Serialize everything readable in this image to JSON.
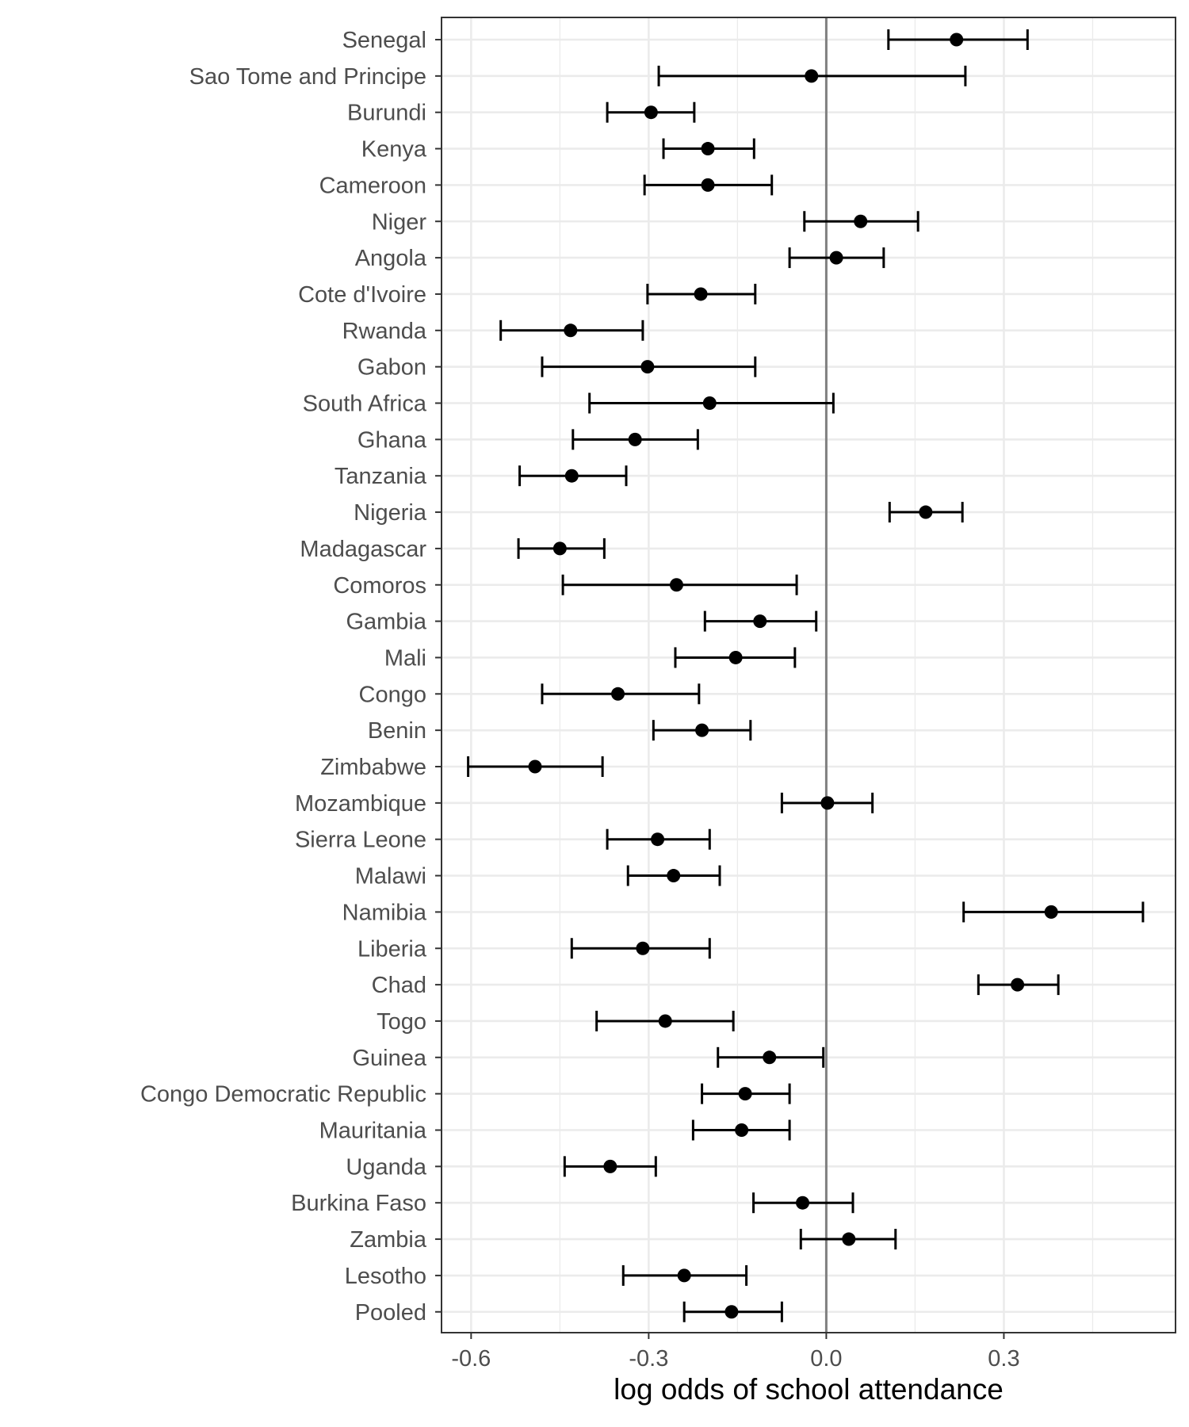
{
  "chart_data": {
    "type": "forest",
    "xlabel": "log odds of school attendance",
    "ylabel": "",
    "xlim": [
      -0.65,
      0.59
    ],
    "x_ticks": [
      -0.6,
      -0.3,
      0.0,
      0.3
    ],
    "x_tick_labels": [
      "-0.6",
      "-0.3",
      "0.0",
      "0.3"
    ],
    "reference_line": 0.0,
    "grid": true,
    "points": [
      {
        "label": "Senegal",
        "estimate": 0.22,
        "lower": 0.105,
        "upper": 0.34
      },
      {
        "label": "Sao Tome and Principe",
        "estimate": -0.025,
        "lower": -0.283,
        "upper": 0.235
      },
      {
        "label": "Burundi",
        "estimate": -0.296,
        "lower": -0.37,
        "upper": -0.223
      },
      {
        "label": "Kenya",
        "estimate": -0.2,
        "lower": -0.275,
        "upper": -0.122
      },
      {
        "label": "Cameroon",
        "estimate": -0.2,
        "lower": -0.307,
        "upper": -0.092
      },
      {
        "label": "Niger",
        "estimate": 0.058,
        "lower": -0.037,
        "upper": 0.155
      },
      {
        "label": "Angola",
        "estimate": 0.017,
        "lower": -0.062,
        "upper": 0.097
      },
      {
        "label": "Cote d'Ivoire",
        "estimate": -0.212,
        "lower": -0.302,
        "upper": -0.12
      },
      {
        "label": "Rwanda",
        "estimate": -0.432,
        "lower": -0.55,
        "upper": -0.31
      },
      {
        "label": "Gabon",
        "estimate": -0.302,
        "lower": -0.48,
        "upper": -0.12
      },
      {
        "label": "South Africa",
        "estimate": -0.197,
        "lower": -0.4,
        "upper": 0.012
      },
      {
        "label": "Ghana",
        "estimate": -0.323,
        "lower": -0.428,
        "upper": -0.217
      },
      {
        "label": "Tanzania",
        "estimate": -0.43,
        "lower": -0.518,
        "upper": -0.338
      },
      {
        "label": "Nigeria",
        "estimate": 0.168,
        "lower": 0.107,
        "upper": 0.23
      },
      {
        "label": "Madagascar",
        "estimate": -0.45,
        "lower": -0.52,
        "upper": -0.375
      },
      {
        "label": "Comoros",
        "estimate": -0.253,
        "lower": -0.445,
        "upper": -0.05
      },
      {
        "label": "Gambia",
        "estimate": -0.112,
        "lower": -0.205,
        "upper": -0.017
      },
      {
        "label": "Mali",
        "estimate": -0.153,
        "lower": -0.255,
        "upper": -0.053
      },
      {
        "label": "Congo",
        "estimate": -0.352,
        "lower": -0.48,
        "upper": -0.215
      },
      {
        "label": "Benin",
        "estimate": -0.21,
        "lower": -0.292,
        "upper": -0.128
      },
      {
        "label": "Zimbabwe",
        "estimate": -0.492,
        "lower": -0.605,
        "upper": -0.378
      },
      {
        "label": "Mozambique",
        "estimate": 0.002,
        "lower": -0.075,
        "upper": 0.078
      },
      {
        "label": "Sierra Leone",
        "estimate": -0.285,
        "lower": -0.37,
        "upper": -0.197
      },
      {
        "label": "Malawi",
        "estimate": -0.258,
        "lower": -0.335,
        "upper": -0.18
      },
      {
        "label": "Namibia",
        "estimate": 0.38,
        "lower": 0.232,
        "upper": 0.535
      },
      {
        "label": "Liberia",
        "estimate": -0.31,
        "lower": -0.43,
        "upper": -0.197
      },
      {
        "label": "Chad",
        "estimate": 0.323,
        "lower": 0.257,
        "upper": 0.392
      },
      {
        "label": "Togo",
        "estimate": -0.272,
        "lower": -0.388,
        "upper": -0.157
      },
      {
        "label": "Guinea",
        "estimate": -0.096,
        "lower": -0.183,
        "upper": -0.005
      },
      {
        "label": "Congo Democratic Republic",
        "estimate": -0.137,
        "lower": -0.21,
        "upper": -0.062
      },
      {
        "label": "Mauritania",
        "estimate": -0.143,
        "lower": -0.225,
        "upper": -0.062
      },
      {
        "label": "Uganda",
        "estimate": -0.365,
        "lower": -0.442,
        "upper": -0.288
      },
      {
        "label": "Burkina Faso",
        "estimate": -0.04,
        "lower": -0.123,
        "upper": 0.045
      },
      {
        "label": "Zambia",
        "estimate": 0.038,
        "lower": -0.043,
        "upper": 0.117
      },
      {
        "label": "Lesotho",
        "estimate": -0.24,
        "lower": -0.343,
        "upper": -0.135
      },
      {
        "label": "Pooled",
        "estimate": -0.16,
        "lower": -0.24,
        "upper": -0.075
      }
    ]
  }
}
